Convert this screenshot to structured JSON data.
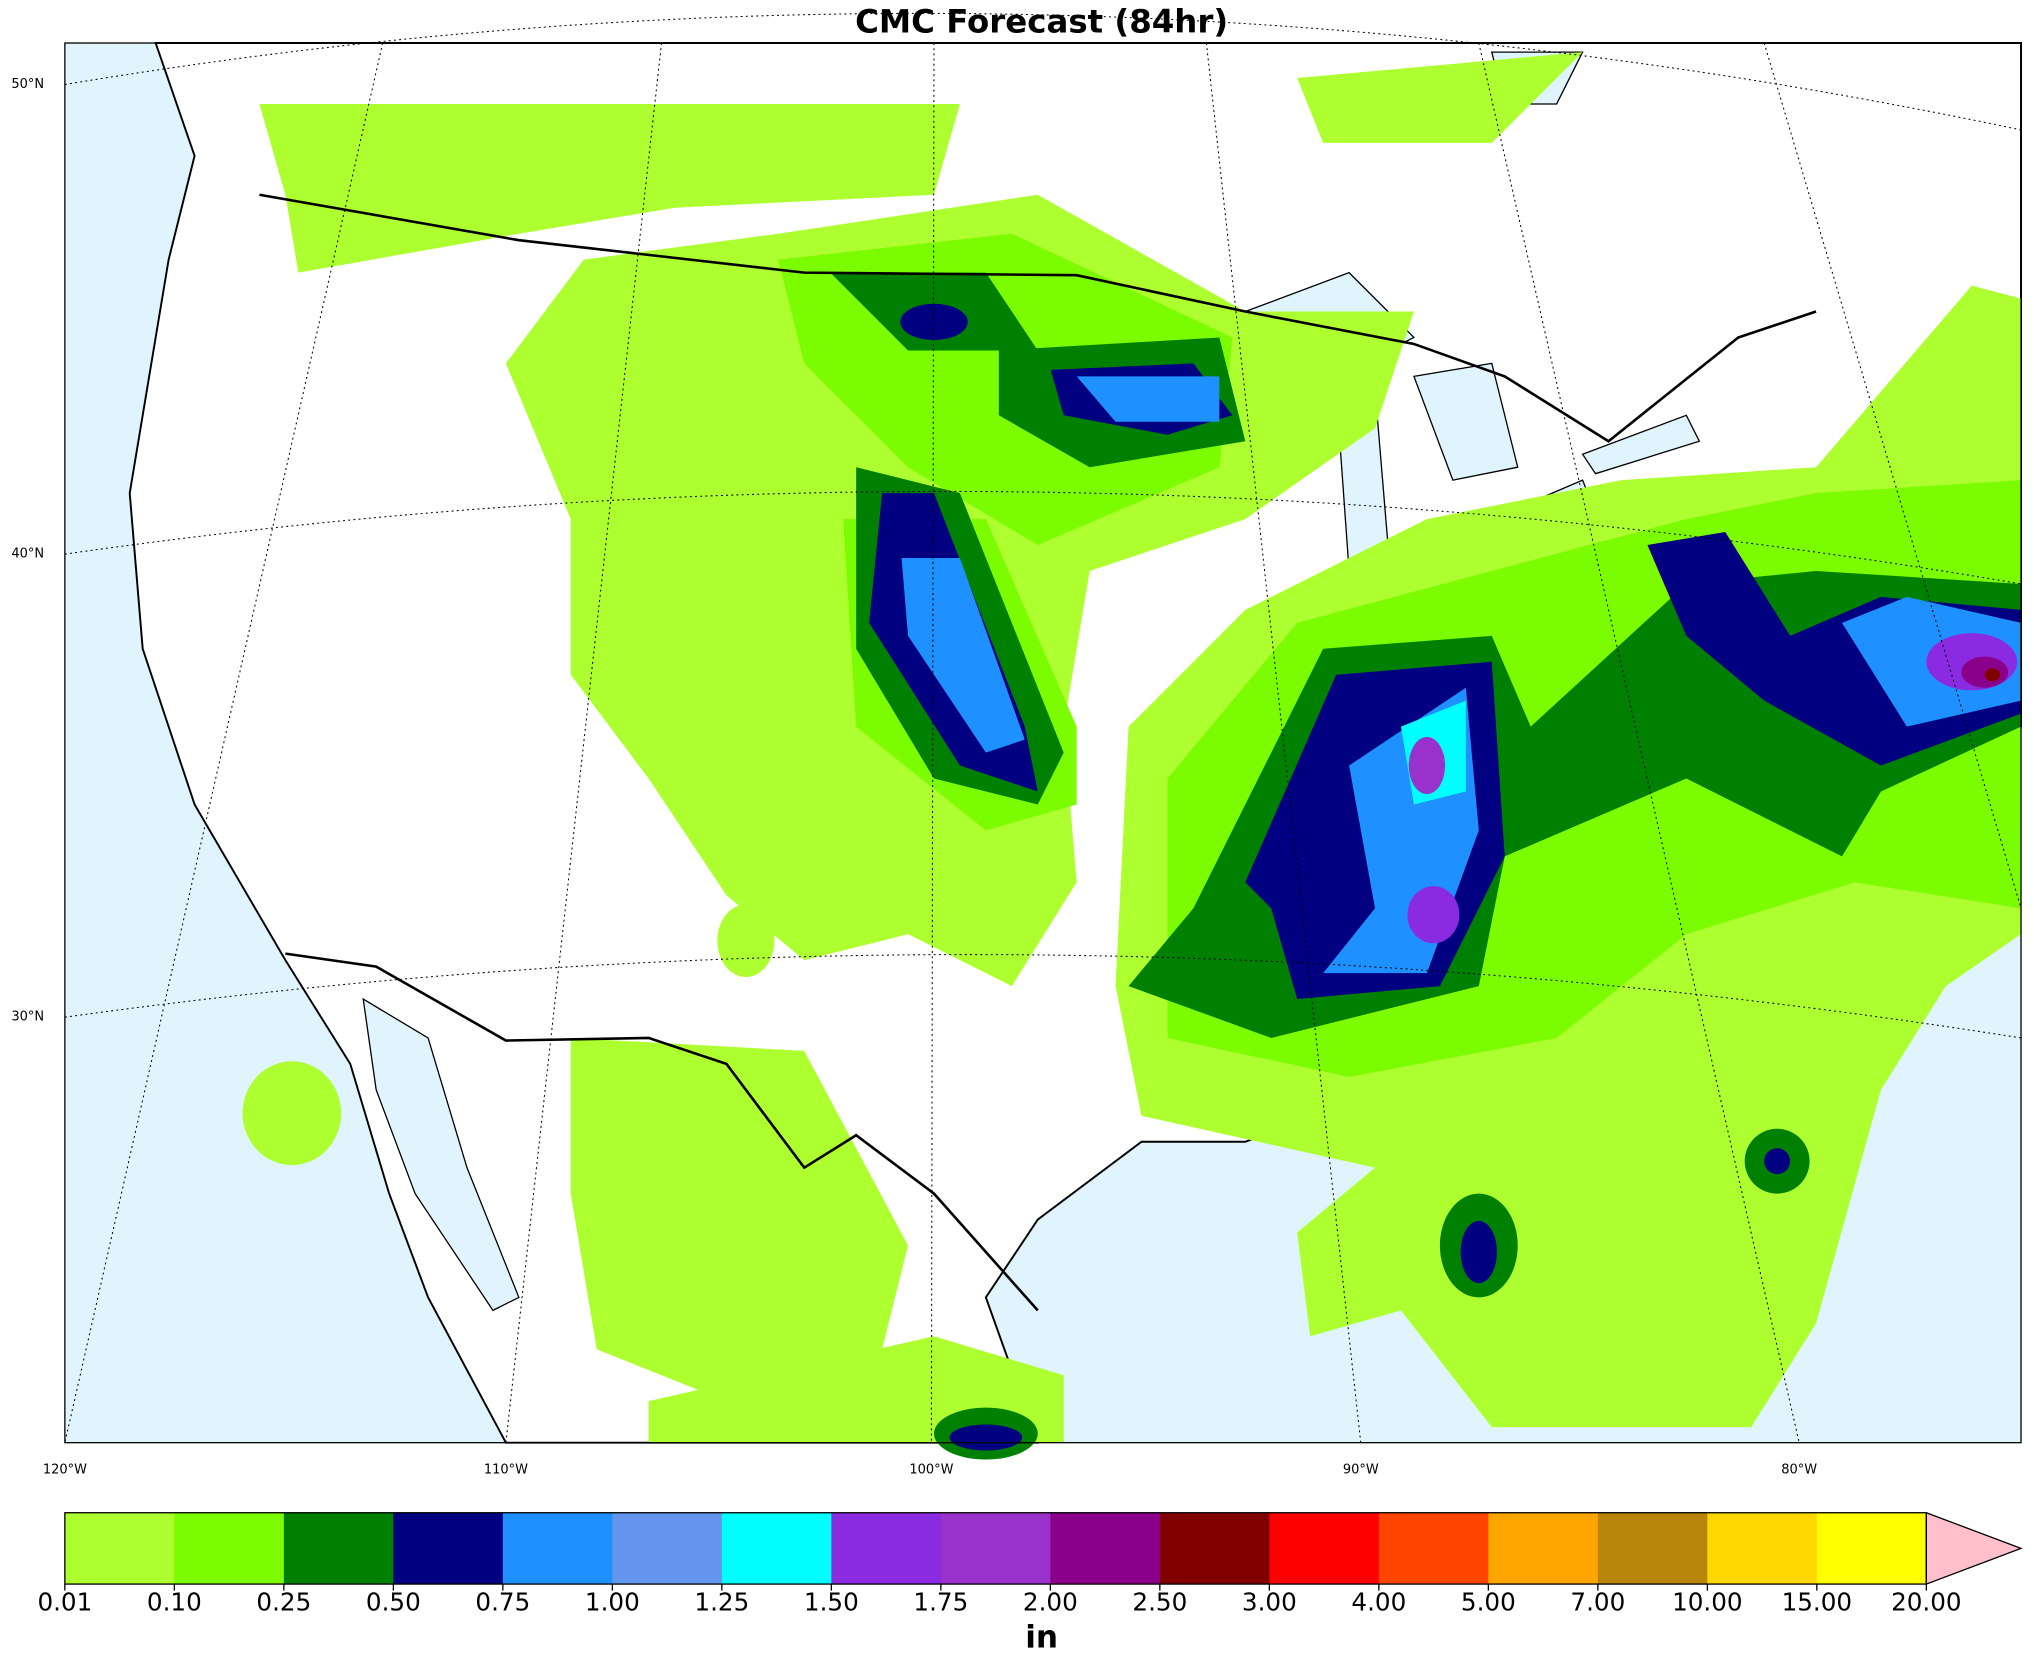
{
  "title": "CMC Forecast (84hr)",
  "lat_labels": [
    "50°N",
    "40°N",
    "30°N"
  ],
  "lon_labels": [
    "120°W",
    "110°W",
    "100°W",
    "90°W",
    "80°W"
  ],
  "colorbar": {
    "ticks": [
      0.01,
      {
        "value": 0.1,
        "label": "0.10"
      },
      0.25,
      {
        "value": 0.5,
        "label": "0.50"
      },
      0.75,
      {
        "value": 1,
        "label": "1.00"
      },
      1.25,
      {
        "value": 1.5,
        "label": "1.50"
      },
      1.75,
      {
        "value": 2,
        "label": "2.00"
      },
      {
        "value": 2.5,
        "label": "2.50"
      },
      {
        "value": 3,
        "label": "3.00"
      },
      {
        "value": 4,
        "label": "4.00"
      },
      {
        "value": 5,
        "label": "5.00"
      },
      {
        "value": 7,
        "label": "7.00"
      },
      {
        "value": 10,
        "label": "10.00"
      },
      {
        "value": 15,
        "label": "15.00"
      },
      {
        "value": 20,
        "label": "20.00"
      }
    ],
    "colors": [
      "#adff2f",
      "#7cfc00",
      "#008000",
      "#000080",
      "#1e90ff",
      "#6495ed",
      "#00ffff",
      "#8a2be2",
      "#9932cc",
      "#8b008b",
      "#800000",
      "#ff0000",
      "#ff4500",
      "#ffa500",
      "#b8860b",
      "#ffd700",
      "#ffff00"
    ],
    "extend_color": "#ffc0cb",
    "label": "in"
  }
}
